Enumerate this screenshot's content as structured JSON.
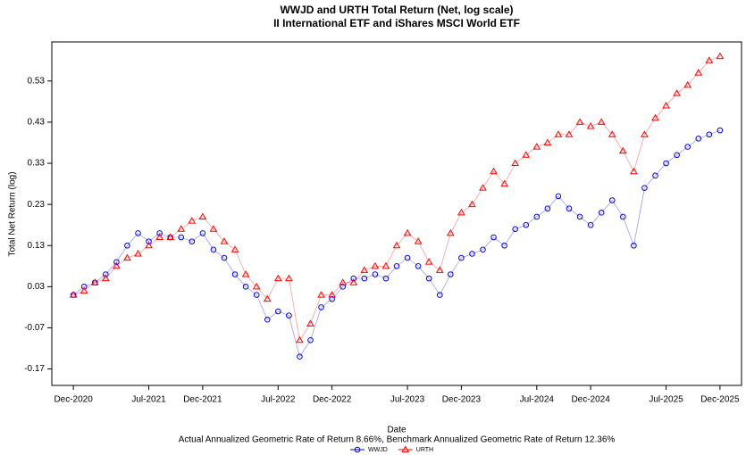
{
  "chart_data": {
    "type": "line",
    "title": "WWJD and URTH Total Return (Net, log scale)",
    "subtitle": "II International ETF and iShares MSCI World ETF",
    "y_label": "Total Net Return (log)",
    "x_label": "Date",
    "note": "Actual Annualized Geometric Rate of Return 8.66%, Benchmark Annualized Geometric Rate of Return 12.36%",
    "x": [
      "2020-12",
      "2021-01",
      "2021-02",
      "2021-03",
      "2021-04",
      "2021-05",
      "2021-06",
      "2021-07",
      "2021-08",
      "2021-09",
      "2021-10",
      "2021-11",
      "2021-12",
      "2022-01",
      "2022-02",
      "2022-03",
      "2022-04",
      "2022-05",
      "2022-06",
      "2022-07",
      "2022-08",
      "2022-09",
      "2022-10",
      "2022-11",
      "2022-12",
      "2023-01",
      "2023-02",
      "2023-03",
      "2023-04",
      "2023-05",
      "2023-06",
      "2023-07",
      "2023-08",
      "2023-09",
      "2023-10",
      "2023-11",
      "2023-12",
      "2024-01",
      "2024-02",
      "2024-03",
      "2024-04",
      "2024-05",
      "2024-06",
      "2024-07",
      "2024-08",
      "2024-09",
      "2024-10",
      "2024-11",
      "2024-12",
      "2025-01",
      "2025-02",
      "2025-03",
      "2025-04",
      "2025-05",
      "2025-06",
      "2025-07",
      "2025-08",
      "2025-09",
      "2025-10",
      "2025-11",
      "2025-12"
    ],
    "series": [
      {
        "name": "WWJD",
        "color": "#0000ee",
        "marker": "circle",
        "values": [
          0.01,
          0.03,
          0.04,
          0.06,
          0.09,
          0.13,
          0.16,
          0.14,
          0.16,
          0.15,
          0.15,
          0.14,
          0.16,
          0.12,
          0.1,
          0.06,
          0.03,
          0.01,
          -0.05,
          -0.03,
          -0.04,
          -0.14,
          -0.1,
          -0.02,
          0.0,
          0.03,
          0.05,
          0.05,
          0.06,
          0.05,
          0.08,
          0.1,
          0.08,
          0.05,
          0.01,
          0.06,
          0.1,
          0.11,
          0.12,
          0.15,
          0.13,
          0.17,
          0.18,
          0.2,
          0.22,
          0.25,
          0.22,
          0.2,
          0.18,
          0.21,
          0.24,
          0.2,
          0.13,
          0.27,
          0.3,
          0.33,
          0.35,
          0.37,
          0.39,
          0.4,
          0.41
        ]
      },
      {
        "name": "URTH",
        "color": "#ff0000",
        "marker": "triangle",
        "values": [
          0.01,
          0.02,
          0.04,
          0.05,
          0.08,
          0.1,
          0.11,
          0.13,
          0.15,
          0.15,
          0.17,
          0.19,
          0.2,
          0.17,
          0.14,
          0.12,
          0.06,
          0.03,
          0.0,
          0.05,
          0.05,
          -0.1,
          -0.06,
          0.01,
          0.01,
          0.04,
          0.04,
          0.07,
          0.08,
          0.08,
          0.13,
          0.16,
          0.14,
          0.09,
          0.07,
          0.16,
          0.21,
          0.23,
          0.27,
          0.31,
          0.28,
          0.33,
          0.35,
          0.37,
          0.38,
          0.4,
          0.4,
          0.43,
          0.42,
          0.43,
          0.4,
          0.36,
          0.31,
          0.4,
          0.44,
          0.47,
          0.5,
          0.52,
          0.55,
          0.58,
          0.59
        ]
      }
    ],
    "xlim": [
      "2020-10",
      "2026-02"
    ],
    "xticks": [
      {
        "value": "2020-12",
        "label": "Dec-2020"
      },
      {
        "value": "2021-07",
        "label": "Jul-2021"
      },
      {
        "value": "2021-12",
        "label": "Dec-2021"
      },
      {
        "value": "2022-07",
        "label": "Jul-2022"
      },
      {
        "value": "2022-12",
        "label": "Dec-2022"
      },
      {
        "value": "2023-07",
        "label": "Jul-2023"
      },
      {
        "value": "2023-12",
        "label": "Dec-2023"
      },
      {
        "value": "2024-07",
        "label": "Jul-2024"
      },
      {
        "value": "2024-12",
        "label": "Dec-2024"
      },
      {
        "value": "2025-07",
        "label": "Jul-2025"
      },
      {
        "value": "2025-12",
        "label": "Dec-2025"
      }
    ],
    "ylim": [
      -0.21,
      0.625
    ],
    "yticks": [
      -0.17,
      -0.07,
      0.03,
      0.13,
      0.23,
      0.33,
      0.43,
      0.53
    ],
    "legend": "bottom"
  }
}
